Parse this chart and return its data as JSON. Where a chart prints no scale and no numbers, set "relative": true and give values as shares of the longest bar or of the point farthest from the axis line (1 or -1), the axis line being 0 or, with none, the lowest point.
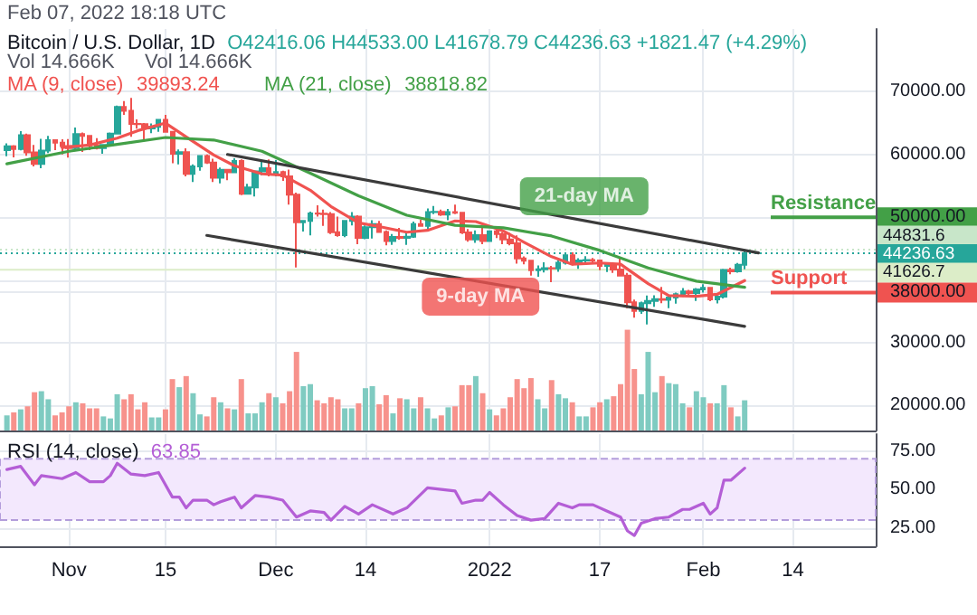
{
  "chart_data": [
    {
      "type": "candlestick",
      "title": "Bitcoin / U.S. Dollar, 1D",
      "subtitle": "O42416.06 H44533.00 L41678.79 C44236.63 +1821.47 (+4.29%)",
      "annotations": [
        "Feb 07, 2022 18:18 UTC",
        "39893.24",
        "38818.82",
        {
          "text": "9-day MA",
          "x": "2022-01-06",
          "y": 46000
        },
        {
          "text": "21-day MA",
          "x": "2022-01-10",
          "y": 47000
        }
      ],
      "x": [
        "2021-10-23",
        "2021-10-24",
        "2021-10-25",
        "2021-10-26",
        "2021-10-27",
        "2021-10-28",
        "2021-10-29",
        "2021-10-30",
        "2021-10-31",
        "2021-11-01",
        "2021-11-02",
        "2021-11-03",
        "2021-11-04",
        "2021-11-05",
        "2021-11-06",
        "2021-11-07",
        "2021-11-08",
        "2021-11-09",
        "2021-11-10",
        "2021-11-11",
        "2021-11-12",
        "2021-11-13",
        "2021-11-14",
        "2021-11-15",
        "2021-11-16",
        "2021-11-17",
        "2021-11-18",
        "2021-11-19",
        "2021-11-20",
        "2021-11-21",
        "2021-11-22",
        "2021-11-23",
        "2021-11-24",
        "2021-11-25",
        "2021-11-26",
        "2021-11-27",
        "2021-11-28",
        "2021-11-29",
        "2021-11-30",
        "2021-12-01",
        "2021-12-02",
        "2021-12-03",
        "2021-12-04",
        "2021-12-05",
        "2021-12-06",
        "2021-12-07",
        "2021-12-08",
        "2021-12-09",
        "2021-12-10",
        "2021-12-11",
        "2021-12-12",
        "2021-12-13",
        "2021-12-14",
        "2021-12-15",
        "2021-12-16",
        "2021-12-17",
        "2021-12-18",
        "2021-12-19",
        "2021-12-20",
        "2021-12-21",
        "2021-12-22",
        "2021-12-23",
        "2021-12-24",
        "2021-12-25",
        "2021-12-26",
        "2021-12-27",
        "2021-12-28",
        "2021-12-29",
        "2021-12-30",
        "2021-12-31",
        "2022-01-01",
        "2022-01-02",
        "2022-01-03",
        "2022-01-04",
        "2022-01-05",
        "2022-01-06",
        "2022-01-07",
        "2022-01-08",
        "2022-01-09",
        "2022-01-10",
        "2022-01-11",
        "2022-01-12",
        "2022-01-13",
        "2022-01-14",
        "2022-01-15",
        "2022-01-16",
        "2022-01-17",
        "2022-01-18",
        "2022-01-19",
        "2022-01-20",
        "2022-01-21",
        "2022-01-22",
        "2022-01-23",
        "2022-01-24",
        "2022-01-25",
        "2022-01-26",
        "2022-01-27",
        "2022-01-28",
        "2022-01-29",
        "2022-01-30",
        "2022-01-31",
        "2022-02-01",
        "2022-02-02",
        "2022-02-03",
        "2022-02-04",
        "2022-02-05",
        "2022-02-06",
        "2022-02-07"
      ],
      "series": [
        {
          "type": "candlestick",
          "ohlc": [
            [
              60690,
              61750,
              59700,
              61300
            ],
            [
              61300,
              61480,
              59530,
              60860
            ],
            [
              60860,
              63700,
              60650,
              63080
            ],
            [
              63080,
              63300,
              59800,
              60330
            ],
            [
              60330,
              61500,
              58100,
              58470
            ],
            [
              58470,
              62500,
              57800,
              60600
            ],
            [
              60600,
              62950,
              60200,
              62270
            ],
            [
              62270,
              62300,
              60700,
              61870
            ],
            [
              61870,
              62400,
              60000,
              61320
            ],
            [
              61320,
              62450,
              59500,
              61000
            ],
            [
              61000,
              64300,
              60700,
              63230
            ],
            [
              63230,
              63500,
              60400,
              62940
            ],
            [
              62940,
              63100,
              60700,
              61440
            ],
            [
              61440,
              62600,
              60800,
              61010
            ],
            [
              61010,
              61600,
              60100,
              61530
            ],
            [
              61530,
              63500,
              61400,
              63310
            ],
            [
              63310,
              67800,
              63300,
              67560
            ],
            [
              67560,
              68500,
              66300,
              66940
            ],
            [
              66940,
              69000,
              62800,
              64880
            ],
            [
              64880,
              65600,
              64100,
              64830
            ],
            [
              64830,
              65000,
              62300,
              64160
            ],
            [
              64160,
              64950,
              63400,
              64400
            ],
            [
              64400,
              65500,
              63600,
              65500
            ],
            [
              65500,
              66300,
              63500,
              63620
            ],
            [
              63620,
              63620,
              58600,
              60100
            ],
            [
              60100,
              60800,
              58400,
              60370
            ],
            [
              60370,
              60970,
              56500,
              56900
            ],
            [
              56900,
              58400,
              55600,
              58080
            ],
            [
              58080,
              59800,
              57400,
              59730
            ],
            [
              59730,
              60000,
              58500,
              58720
            ],
            [
              58720,
              59300,
              55600,
              56290
            ],
            [
              56290,
              57900,
              55400,
              57560
            ],
            [
              57560,
              57700,
              55900,
              57170
            ],
            [
              57170,
              59400,
              57000,
              58960
            ],
            [
              58960,
              59200,
              53500,
              53740
            ],
            [
              53740,
              55300,
              53700,
              54740
            ],
            [
              54740,
              57400,
              53300,
              57290
            ],
            [
              57290,
              58900,
              56700,
              57800
            ],
            [
              57800,
              59200,
              56500,
              56950
            ],
            [
              56950,
              59100,
              56500,
              57200
            ],
            [
              57200,
              57400,
              55800,
              56500
            ],
            [
              56500,
              57600,
              52000,
              53600
            ],
            [
              53600,
              53900,
              42000,
              49200
            ],
            [
              49200,
              49500,
              47700,
              49400
            ],
            [
              49400,
              50900,
              47100,
              50600
            ],
            [
              50600,
              51900,
              50100,
              50550
            ],
            [
              50550,
              51200,
              48600,
              50500
            ],
            [
              50500,
              50800,
              47300,
              47600
            ],
            [
              47600,
              50100,
              46900,
              47150
            ],
            [
              47150,
              49500,
              46800,
              49400
            ],
            [
              49400,
              50800,
              48700,
              50100
            ],
            [
              50100,
              50300,
              45700,
              46700
            ],
            [
              46700,
              48700,
              46500,
              48400
            ],
            [
              48400,
              49500,
              46600,
              48900
            ],
            [
              48900,
              49400,
              47500,
              47650
            ],
            [
              47650,
              47900,
              45500,
              46200
            ],
            [
              46200,
              47300,
              45600,
              46850
            ],
            [
              46850,
              48300,
              46400,
              46700
            ],
            [
              46700,
              47500,
              45600,
              46900
            ],
            [
              46900,
              49300,
              46700,
              48900
            ],
            [
              48900,
              49600,
              48500,
              48600
            ],
            [
              48600,
              51400,
              48100,
              50800
            ],
            [
              50800,
              51800,
              50500,
              50850
            ],
            [
              50850,
              51200,
              50200,
              50400
            ],
            [
              50400,
              51300,
              49500,
              50800
            ],
            [
              50800,
              52000,
              50500,
              50700
            ],
            [
              50700,
              50700,
              47300,
              47550
            ],
            [
              47550,
              48100,
              46100,
              46460
            ],
            [
              46460,
              47900,
              45900,
              47150
            ],
            [
              47150,
              48500,
              45700,
              46200
            ],
            [
              46200,
              47900,
              46200,
              47730
            ],
            [
              47730,
              47990,
              46650,
              47300
            ],
            [
              47300,
              47600,
              45700,
              46450
            ],
            [
              46450,
              47500,
              45500,
              45830
            ],
            [
              45830,
              47100,
              42600,
              43430
            ],
            [
              43430,
              43750,
              42500,
              43080
            ],
            [
              43080,
              43150,
              40700,
              41550
            ],
            [
              41550,
              42300,
              40500,
              41680
            ],
            [
              41680,
              42800,
              41200,
              41860
            ],
            [
              41860,
              42250,
              39650,
              41830
            ],
            [
              41830,
              43100,
              41300,
              42740
            ],
            [
              42740,
              44300,
              42450,
              43920
            ],
            [
              43920,
              44400,
              42300,
              42590
            ],
            [
              42590,
              43450,
              41750,
              43100
            ],
            [
              43100,
              43800,
              42600,
              43180
            ],
            [
              43180,
              43500,
              42600,
              43110
            ],
            [
              43110,
              43200,
              41550,
              42250
            ],
            [
              42250,
              42700,
              41250,
              42370
            ],
            [
              42370,
              42550,
              41100,
              41660
            ],
            [
              41660,
              43500,
              40550,
              40680
            ],
            [
              40680,
              41100,
              35500,
              36450
            ],
            [
              36450,
              36850,
              34000,
              35070
            ],
            [
              35070,
              36550,
              34600,
              36280
            ],
            [
              36280,
              37500,
              32900,
              36660
            ],
            [
              36660,
              37550,
              35700,
              36950
            ],
            [
              36950,
              38900,
              36300,
              36820
            ],
            [
              36820,
              37200,
              35500,
              37190
            ],
            [
              37190,
              38000,
              36200,
              37720
            ],
            [
              37720,
              38700,
              37300,
              38170
            ],
            [
              38170,
              38400,
              37400,
              37920
            ],
            [
              37920,
              38700,
              36650,
              38480
            ],
            [
              38480,
              39300,
              38000,
              38740
            ],
            [
              38740,
              38850,
              36600,
              36900
            ],
            [
              36900,
              37400,
              36250,
              37330
            ],
            [
              37330,
              41750,
              37050,
              41570
            ],
            [
              41570,
              41950,
              40900,
              41380
            ],
            [
              41380,
              42700,
              41150,
              42410
            ],
            [
              42416.06,
              44533,
              41678.79,
              44236.63
            ]
          ],
          "colors": [
            "#26a69a",
            "#ef5350",
            "#26a69a",
            "#ef5350",
            "#ef5350",
            "#26a69a",
            "#26a69a",
            "#ef5350",
            "#ef5350",
            "#ef5350",
            "#26a69a",
            "#ef5350",
            "#ef5350",
            "#ef5350",
            "#26a69a",
            "#26a69a",
            "#26a69a",
            "#ef5350",
            "#ef5350",
            "#ef5350",
            "#ef5350",
            "#26a69a",
            "#26a69a",
            "#ef5350",
            "#ef5350",
            "#26a69a",
            "#ef5350",
            "#26a69a",
            "#26a69a",
            "#ef5350",
            "#ef5350",
            "#26a69a",
            "#ef5350",
            "#26a69a",
            "#ef5350",
            "#26a69a",
            "#26a69a",
            "#26a69a",
            "#ef5350",
            "#26a69a",
            "#ef5350",
            "#ef5350",
            "#ef5350",
            "#26a69a",
            "#26a69a",
            "#ef5350",
            "#ef5350",
            "#ef5350",
            "#ef5350",
            "#26a69a",
            "#26a69a",
            "#ef5350",
            "#26a69a",
            "#26a69a",
            "#ef5350",
            "#ef5350",
            "#26a69a",
            "#ef5350",
            "#26a69a",
            "#26a69a",
            "#ef5350",
            "#26a69a",
            "#26a69a",
            "#ef5350",
            "#26a69a",
            "#ef5350",
            "#ef5350",
            "#ef5350",
            "#26a69a",
            "#ef5350",
            "#26a69a",
            "#ef5350",
            "#ef5350",
            "#ef5350",
            "#ef5350",
            "#ef5350",
            "#ef5350",
            "#26a69a",
            "#26a69a",
            "#ef5350",
            "#26a69a",
            "#26a69a",
            "#ef5350",
            "#26a69a",
            "#26a69a",
            "#ef5350",
            "#ef5350",
            "#26a69a",
            "#ef5350",
            "#ef5350",
            "#ef5350",
            "#ef5350",
            "#26a69a",
            "#26a69a",
            "#26a69a",
            "#ef5350",
            "#26a69a",
            "#26a69a",
            "#26a69a",
            "#ef5350",
            "#26a69a",
            "#26a69a",
            "#ef5350",
            "#26a69a",
            "#26a69a",
            "#ef5350",
            "#26a69a",
            "#26a69a"
          ]
        },
        {
          "type": "line",
          "name": "MA (9, close)",
          "color": "#f05350",
          "x": [
            "2021-10-31",
            "2021-11-04",
            "2021-11-08",
            "2021-11-11",
            "2021-11-15",
            "2021-11-18",
            "2021-11-22",
            "2021-11-25",
            "2021-11-29",
            "2021-12-02",
            "2021-12-06",
            "2021-12-09",
            "2021-12-13",
            "2021-12-16",
            "2021-12-20",
            "2021-12-23",
            "2021-12-27",
            "2021-12-30",
            "2022-01-03",
            "2022-01-06",
            "2022-01-10",
            "2022-01-13",
            "2022-01-17",
            "2022-01-20",
            "2022-01-24",
            "2022-01-27",
            "2022-01-31",
            "2022-02-03",
            "2022-02-07"
          ],
          "values": [
            61100,
            61500,
            62600,
            63800,
            65000,
            62800,
            59900,
            58200,
            56900,
            56700,
            54300,
            51700,
            49100,
            48500,
            47600,
            47900,
            49400,
            49300,
            47800,
            46000,
            43700,
            42500,
            42700,
            42500,
            39400,
            37500,
            37400,
            37700,
            39893.24
          ]
        },
        {
          "type": "line",
          "name": "MA (21, close)",
          "color": "#43a047",
          "x": [
            "2021-10-23",
            "2021-11-01",
            "2021-11-08",
            "2021-11-15",
            "2021-11-22",
            "2021-11-29",
            "2021-12-06",
            "2021-12-13",
            "2021-12-20",
            "2021-12-27",
            "2022-01-03",
            "2022-01-10",
            "2022-01-17",
            "2022-01-24",
            "2022-01-31",
            "2022-02-07"
          ],
          "values": [
            58500,
            60500,
            61600,
            62700,
            62300,
            60500,
            57000,
            53400,
            50300,
            48700,
            48300,
            47000,
            44700,
            41900,
            39800,
            38818.82
          ]
        },
        {
          "type": "line",
          "color": "#3b3b3b",
          "x": [
            "2021-11-24",
            "2022-02-09"
          ],
          "values": [
            60000,
            44300
          ]
        },
        {
          "type": "line",
          "color": "#3b3b3b",
          "x": [
            "2021-11-21",
            "2022-02-07"
          ],
          "values": [
            47100,
            32600
          ]
        }
      ],
      "ref_lines": [
        {
          "axis": "y",
          "value": 50000,
          "label": "Resistance",
          "color": "#43a047"
        },
        {
          "axis": "y",
          "value": 44831.6,
          "label": "44831.6",
          "color": "#c8e6c9",
          "line_style": "dotted"
        },
        {
          "axis": "y",
          "value": 44236.63,
          "label": "44236.63",
          "color": "#26a69a",
          "line_style": "dotted"
        },
        {
          "axis": "y",
          "value": 41626.7,
          "label": "41626.7",
          "color": "#dcedc8",
          "line_style": "solid"
        },
        {
          "axis": "y",
          "value": 38000,
          "label": "Support",
          "color": "#ef5350"
        }
      ],
      "xlim": [
        "2021-10-22",
        "2022-02-26"
      ],
      "xticks": [
        {
          "value": "2021-11-01",
          "label": null
        },
        {
          "value": "2021-11-15",
          "label": null
        },
        {
          "value": "2021-12-01",
          "label": null
        },
        {
          "value": "2021-12-14",
          "label": null
        },
        {
          "value": "2022-01-01",
          "label": null
        },
        {
          "value": "2022-01-17",
          "label": null
        },
        {
          "value": "2022-02-01",
          "label": null
        },
        {
          "value": "2022-02-14",
          "label": null
        }
      ],
      "ylim": [
        16000,
        80000
      ],
      "yticks": [
        {
          "value": 20000,
          "label": "20000.00"
        },
        {
          "value": 30000,
          "label": "30000.00"
        },
        {
          "value": 38000,
          "label": "38000.00"
        },
        {
          "value": 40000,
          "label": null
        },
        {
          "value": 50000,
          "label": "50000.00"
        },
        {
          "value": 60000,
          "label": "60000.00"
        },
        {
          "value": 70000,
          "label": "70000.00"
        }
      ],
      "tick_labels": "y",
      "grid": true,
      "legend": "top left",
      "marker": "none"
    },
    {
      "type": "bar",
      "relative": true,
      "annotations": [
        "Vol 14.666K",
        "Vol 14.666K"
      ],
      "x": [
        "2021-10-23",
        "2021-10-24",
        "2021-10-25",
        "2021-10-26",
        "2021-10-27",
        "2021-10-28",
        "2021-10-29",
        "2021-10-30",
        "2021-10-31",
        "2021-11-01",
        "2021-11-02",
        "2021-11-03",
        "2021-11-04",
        "2021-11-05",
        "2021-11-06",
        "2021-11-07",
        "2021-11-08",
        "2021-11-09",
        "2021-11-10",
        "2021-11-11",
        "2021-11-12",
        "2021-11-13",
        "2021-11-14",
        "2021-11-15",
        "2021-11-16",
        "2021-11-17",
        "2021-11-18",
        "2021-11-19",
        "2021-11-20",
        "2021-11-21",
        "2021-11-22",
        "2021-11-23",
        "2021-11-24",
        "2021-11-25",
        "2021-11-26",
        "2021-11-27",
        "2021-11-28",
        "2021-11-29",
        "2021-11-30",
        "2021-12-01",
        "2021-12-02",
        "2021-12-03",
        "2021-12-04",
        "2021-12-05",
        "2021-12-06",
        "2021-12-07",
        "2021-12-08",
        "2021-12-09",
        "2021-12-10",
        "2021-12-11",
        "2021-12-12",
        "2021-12-13",
        "2021-12-14",
        "2021-12-15",
        "2021-12-16",
        "2021-12-17",
        "2021-12-18",
        "2021-12-19",
        "2021-12-20",
        "2021-12-21",
        "2021-12-22",
        "2021-12-23",
        "2021-12-24",
        "2021-12-25",
        "2021-12-26",
        "2021-12-27",
        "2021-12-28",
        "2021-12-29",
        "2021-12-30",
        "2021-12-31",
        "2022-01-01",
        "2022-01-02",
        "2022-01-03",
        "2022-01-04",
        "2022-01-05",
        "2022-01-06",
        "2022-01-07",
        "2022-01-08",
        "2022-01-09",
        "2022-01-10",
        "2022-01-11",
        "2022-01-12",
        "2022-01-13",
        "2022-01-14",
        "2022-01-15",
        "2022-01-16",
        "2022-01-17",
        "2022-01-18",
        "2022-01-19",
        "2022-01-20",
        "2022-01-21",
        "2022-01-22",
        "2022-01-23",
        "2022-01-24",
        "2022-01-25",
        "2022-01-26",
        "2022-01-27",
        "2022-01-28",
        "2022-01-29",
        "2022-01-30",
        "2022-01-31",
        "2022-02-01",
        "2022-02-02",
        "2022-02-03",
        "2022-02-04",
        "2022-02-05",
        "2022-02-06",
        "2022-02-07"
      ],
      "values": [
        0.15,
        0.18,
        0.21,
        0.24,
        0.38,
        0.39,
        0.31,
        0.15,
        0.18,
        0.24,
        0.28,
        0.27,
        0.22,
        0.22,
        0.14,
        0.12,
        0.36,
        0.31,
        0.36,
        0.21,
        0.28,
        0.13,
        0.13,
        0.21,
        0.51,
        0.43,
        0.54,
        0.37,
        0.16,
        0.14,
        0.33,
        0.28,
        0.22,
        0.21,
        0.51,
        0.17,
        0.17,
        0.28,
        0.37,
        0.33,
        0.27,
        0.39,
        0.78,
        0.44,
        0.46,
        0.3,
        0.27,
        0.33,
        0.31,
        0.22,
        0.22,
        0.27,
        0.42,
        0.44,
        0.26,
        0.35,
        0.17,
        0.32,
        0.31,
        0.22,
        0.33,
        0.22,
        0.12,
        0.15,
        0.23,
        0.24,
        0.45,
        0.45,
        0.54,
        0.37,
        0.21,
        0.15,
        0.22,
        0.33,
        0.51,
        0.42,
        0.52,
        0.31,
        0.22,
        0.5,
        0.36,
        0.32,
        0.28,
        0.14,
        0.14,
        0.23,
        0.28,
        0.31,
        0.34,
        0.46,
        1,
        0.61,
        0.36,
        0.78,
        0.38,
        0.54,
        0.47,
        0.46,
        0.27,
        0.23,
        0.39,
        0.33,
        0.27,
        0.27,
        0.45,
        0.23,
        0.14,
        0.3
      ],
      "colors": [
        "#7fcbc1",
        "#f7928c",
        "#7fcbc1",
        "#f7928c",
        "#f7928c",
        "#7fcbc1",
        "#7fcbc1",
        "#f7928c",
        "#f7928c",
        "#f7928c",
        "#7fcbc1",
        "#f7928c",
        "#f7928c",
        "#f7928c",
        "#7fcbc1",
        "#7fcbc1",
        "#7fcbc1",
        "#f7928c",
        "#f7928c",
        "#f7928c",
        "#f7928c",
        "#7fcbc1",
        "#7fcbc1",
        "#f7928c",
        "#f7928c",
        "#7fcbc1",
        "#f7928c",
        "#7fcbc1",
        "#7fcbc1",
        "#f7928c",
        "#f7928c",
        "#7fcbc1",
        "#f7928c",
        "#7fcbc1",
        "#f7928c",
        "#7fcbc1",
        "#7fcbc1",
        "#7fcbc1",
        "#f7928c",
        "#7fcbc1",
        "#f7928c",
        "#f7928c",
        "#f7928c",
        "#7fcbc1",
        "#7fcbc1",
        "#f7928c",
        "#f7928c",
        "#f7928c",
        "#f7928c",
        "#7fcbc1",
        "#7fcbc1",
        "#f7928c",
        "#7fcbc1",
        "#7fcbc1",
        "#f7928c",
        "#f7928c",
        "#7fcbc1",
        "#f7928c",
        "#7fcbc1",
        "#7fcbc1",
        "#f7928c",
        "#7fcbc1",
        "#7fcbc1",
        "#f7928c",
        "#7fcbc1",
        "#f7928c",
        "#f7928c",
        "#f7928c",
        "#7fcbc1",
        "#f7928c",
        "#7fcbc1",
        "#f7928c",
        "#f7928c",
        "#f7928c",
        "#f7928c",
        "#f7928c",
        "#f7928c",
        "#7fcbc1",
        "#7fcbc1",
        "#f7928c",
        "#7fcbc1",
        "#7fcbc1",
        "#f7928c",
        "#7fcbc1",
        "#7fcbc1",
        "#f7928c",
        "#f7928c",
        "#7fcbc1",
        "#f7928c",
        "#f7928c",
        "#f7928c",
        "#f7928c",
        "#7fcbc1",
        "#7fcbc1",
        "#7fcbc1",
        "#f7928c",
        "#7fcbc1",
        "#7fcbc1",
        "#7fcbc1",
        "#f7928c",
        "#7fcbc1",
        "#7fcbc1",
        "#f7928c",
        "#7fcbc1",
        "#7fcbc1",
        "#f7928c",
        "#7fcbc1",
        "#7fcbc1"
      ],
      "xlim": [
        "2021-10-22",
        "2022-02-26"
      ],
      "tick_labels": false
    },
    {
      "type": "line",
      "title": "RSI (14, close)",
      "annotations": [
        "63.85"
      ],
      "series": [
        {
          "color": "#b45ed6",
          "x": [
            "2021-10-23",
            "2021-10-25",
            "2021-10-27",
            "2021-10-28",
            "2021-10-31",
            "2021-11-02",
            "2021-11-04",
            "2021-11-06",
            "2021-11-07",
            "2021-11-08",
            "2021-11-10",
            "2021-11-12",
            "2021-11-14",
            "2021-11-16",
            "2021-11-17",
            "2021-11-18",
            "2021-11-19",
            "2021-11-21",
            "2021-11-22",
            "2021-11-23",
            "2021-11-25",
            "2021-11-26",
            "2021-11-28",
            "2021-11-30",
            "2021-12-02",
            "2021-12-04",
            "2021-12-06",
            "2021-12-08",
            "2021-12-09",
            "2021-12-11",
            "2021-12-13",
            "2021-12-15",
            "2021-12-18",
            "2021-12-20",
            "2021-12-23",
            "2021-12-25",
            "2021-12-27",
            "2021-12-28",
            "2021-12-30",
            "2021-12-31",
            "2022-01-01",
            "2022-01-03",
            "2022-01-05",
            "2022-01-07",
            "2022-01-09",
            "2022-01-11",
            "2022-01-13",
            "2022-01-14",
            "2022-01-16",
            "2022-01-18",
            "2022-01-20",
            "2022-01-21",
            "2022-01-22",
            "2022-01-23",
            "2022-01-25",
            "2022-01-27",
            "2022-01-29",
            "2022-01-30",
            "2022-02-01",
            "2022-02-02",
            "2022-02-03",
            "2022-02-04",
            "2022-02-05",
            "2022-02-07"
          ],
          "values": [
            63,
            65,
            53,
            59,
            57,
            61,
            55,
            55,
            59,
            67,
            60,
            59,
            61,
            45,
            45,
            38,
            43,
            43,
            40,
            42,
            45,
            38,
            46,
            45,
            43,
            32,
            36,
            35,
            30,
            39,
            34,
            40,
            34,
            38,
            51,
            50,
            49,
            41,
            43,
            43,
            48,
            40,
            33,
            30,
            31,
            41,
            38,
            40,
            40,
            36,
            32,
            23,
            20,
            28,
            31,
            32,
            37,
            37,
            41,
            34,
            38,
            56,
            56,
            63.85
          ]
        }
      ],
      "bands": [
        {
          "axis": "y",
          "from": 30,
          "to": 70,
          "color": "#f3e8fd"
        }
      ],
      "xlim": [
        "2021-10-22",
        "2022-02-26"
      ],
      "xticks": [
        {
          "value": "2021-11-01",
          "label": "Nov"
        },
        {
          "value": "2021-11-15",
          "label": "15"
        },
        {
          "value": "2021-12-01",
          "label": "Dec"
        },
        {
          "value": "2021-12-14",
          "label": "14"
        },
        {
          "value": "2022-01-01",
          "label": "2022"
        },
        {
          "value": "2022-01-17",
          "label": "17"
        },
        {
          "value": "2022-02-01",
          "label": "Feb"
        },
        {
          "value": "2022-02-14",
          "label": "14"
        }
      ],
      "ylim": [
        13,
        86
      ],
      "yticks": [
        {
          "value": 25,
          "label": "25.00"
        },
        {
          "value": 50,
          "label": "50.00"
        },
        {
          "value": 75,
          "label": "75.00"
        }
      ],
      "grid": true,
      "marker": "none"
    }
  ]
}
